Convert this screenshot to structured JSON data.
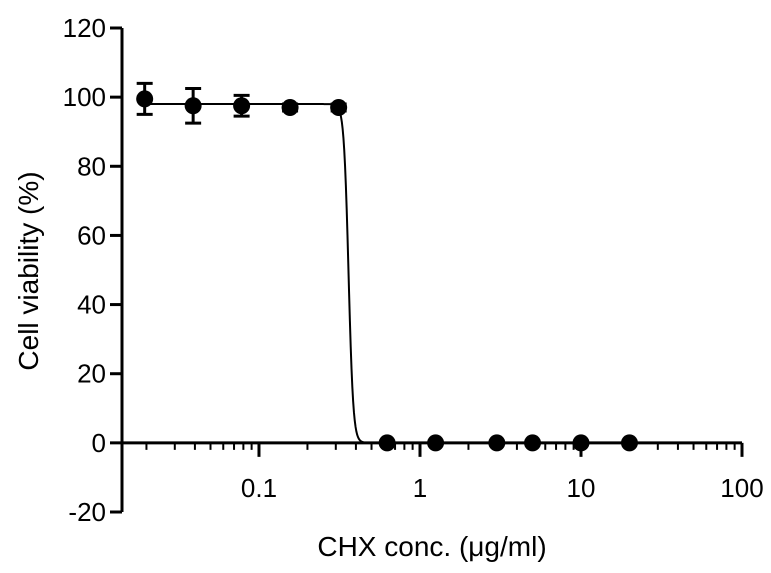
{
  "chart_data": {
    "type": "scatter",
    "title": "",
    "xlabel": "CHX conc. (μg/ml)",
    "ylabel": "Cell viability (%)",
    "x_scale": "log",
    "xlim": [
      0.0141,
      100
    ],
    "ylim": [
      -20,
      120
    ],
    "x_tick_labels": [
      "0.1",
      "1",
      "10",
      "100"
    ],
    "x_tick_values": [
      0.1,
      1,
      10,
      100
    ],
    "y_tick_labels": [
      "-20",
      "0",
      "20",
      "40",
      "60",
      "80",
      "100",
      "120"
    ],
    "y_tick_values": [
      -20,
      0,
      20,
      40,
      60,
      80,
      100,
      120
    ],
    "x_axis_crosses_at": 0,
    "grid": false,
    "legend": "none",
    "marker_color": "#000000",
    "points": [
      {
        "x": 0.0195,
        "y": 99.5,
        "err": 4.5
      },
      {
        "x": 0.039,
        "y": 97.5,
        "err": 5.0
      },
      {
        "x": 0.078,
        "y": 97.5,
        "err": 3.0
      },
      {
        "x": 0.156,
        "y": 97.0,
        "err": 1.0
      },
      {
        "x": 0.3125,
        "y": 97.0,
        "err": 1.0
      },
      {
        "x": 0.625,
        "y": 0,
        "err": 0
      },
      {
        "x": 1.25,
        "y": 0,
        "err": 0
      },
      {
        "x": 3.0,
        "y": 0,
        "err": 0
      },
      {
        "x": 5.0,
        "y": 0,
        "err": 0
      },
      {
        "x": 10,
        "y": 0,
        "err": 0
      },
      {
        "x": 20,
        "y": 0,
        "err": 0
      }
    ],
    "fit_curve": {
      "top": 98,
      "bottom": 0,
      "ic50": 0.36,
      "hill_slope": 30,
      "x_start": 0.0195,
      "x_end": 20
    }
  }
}
